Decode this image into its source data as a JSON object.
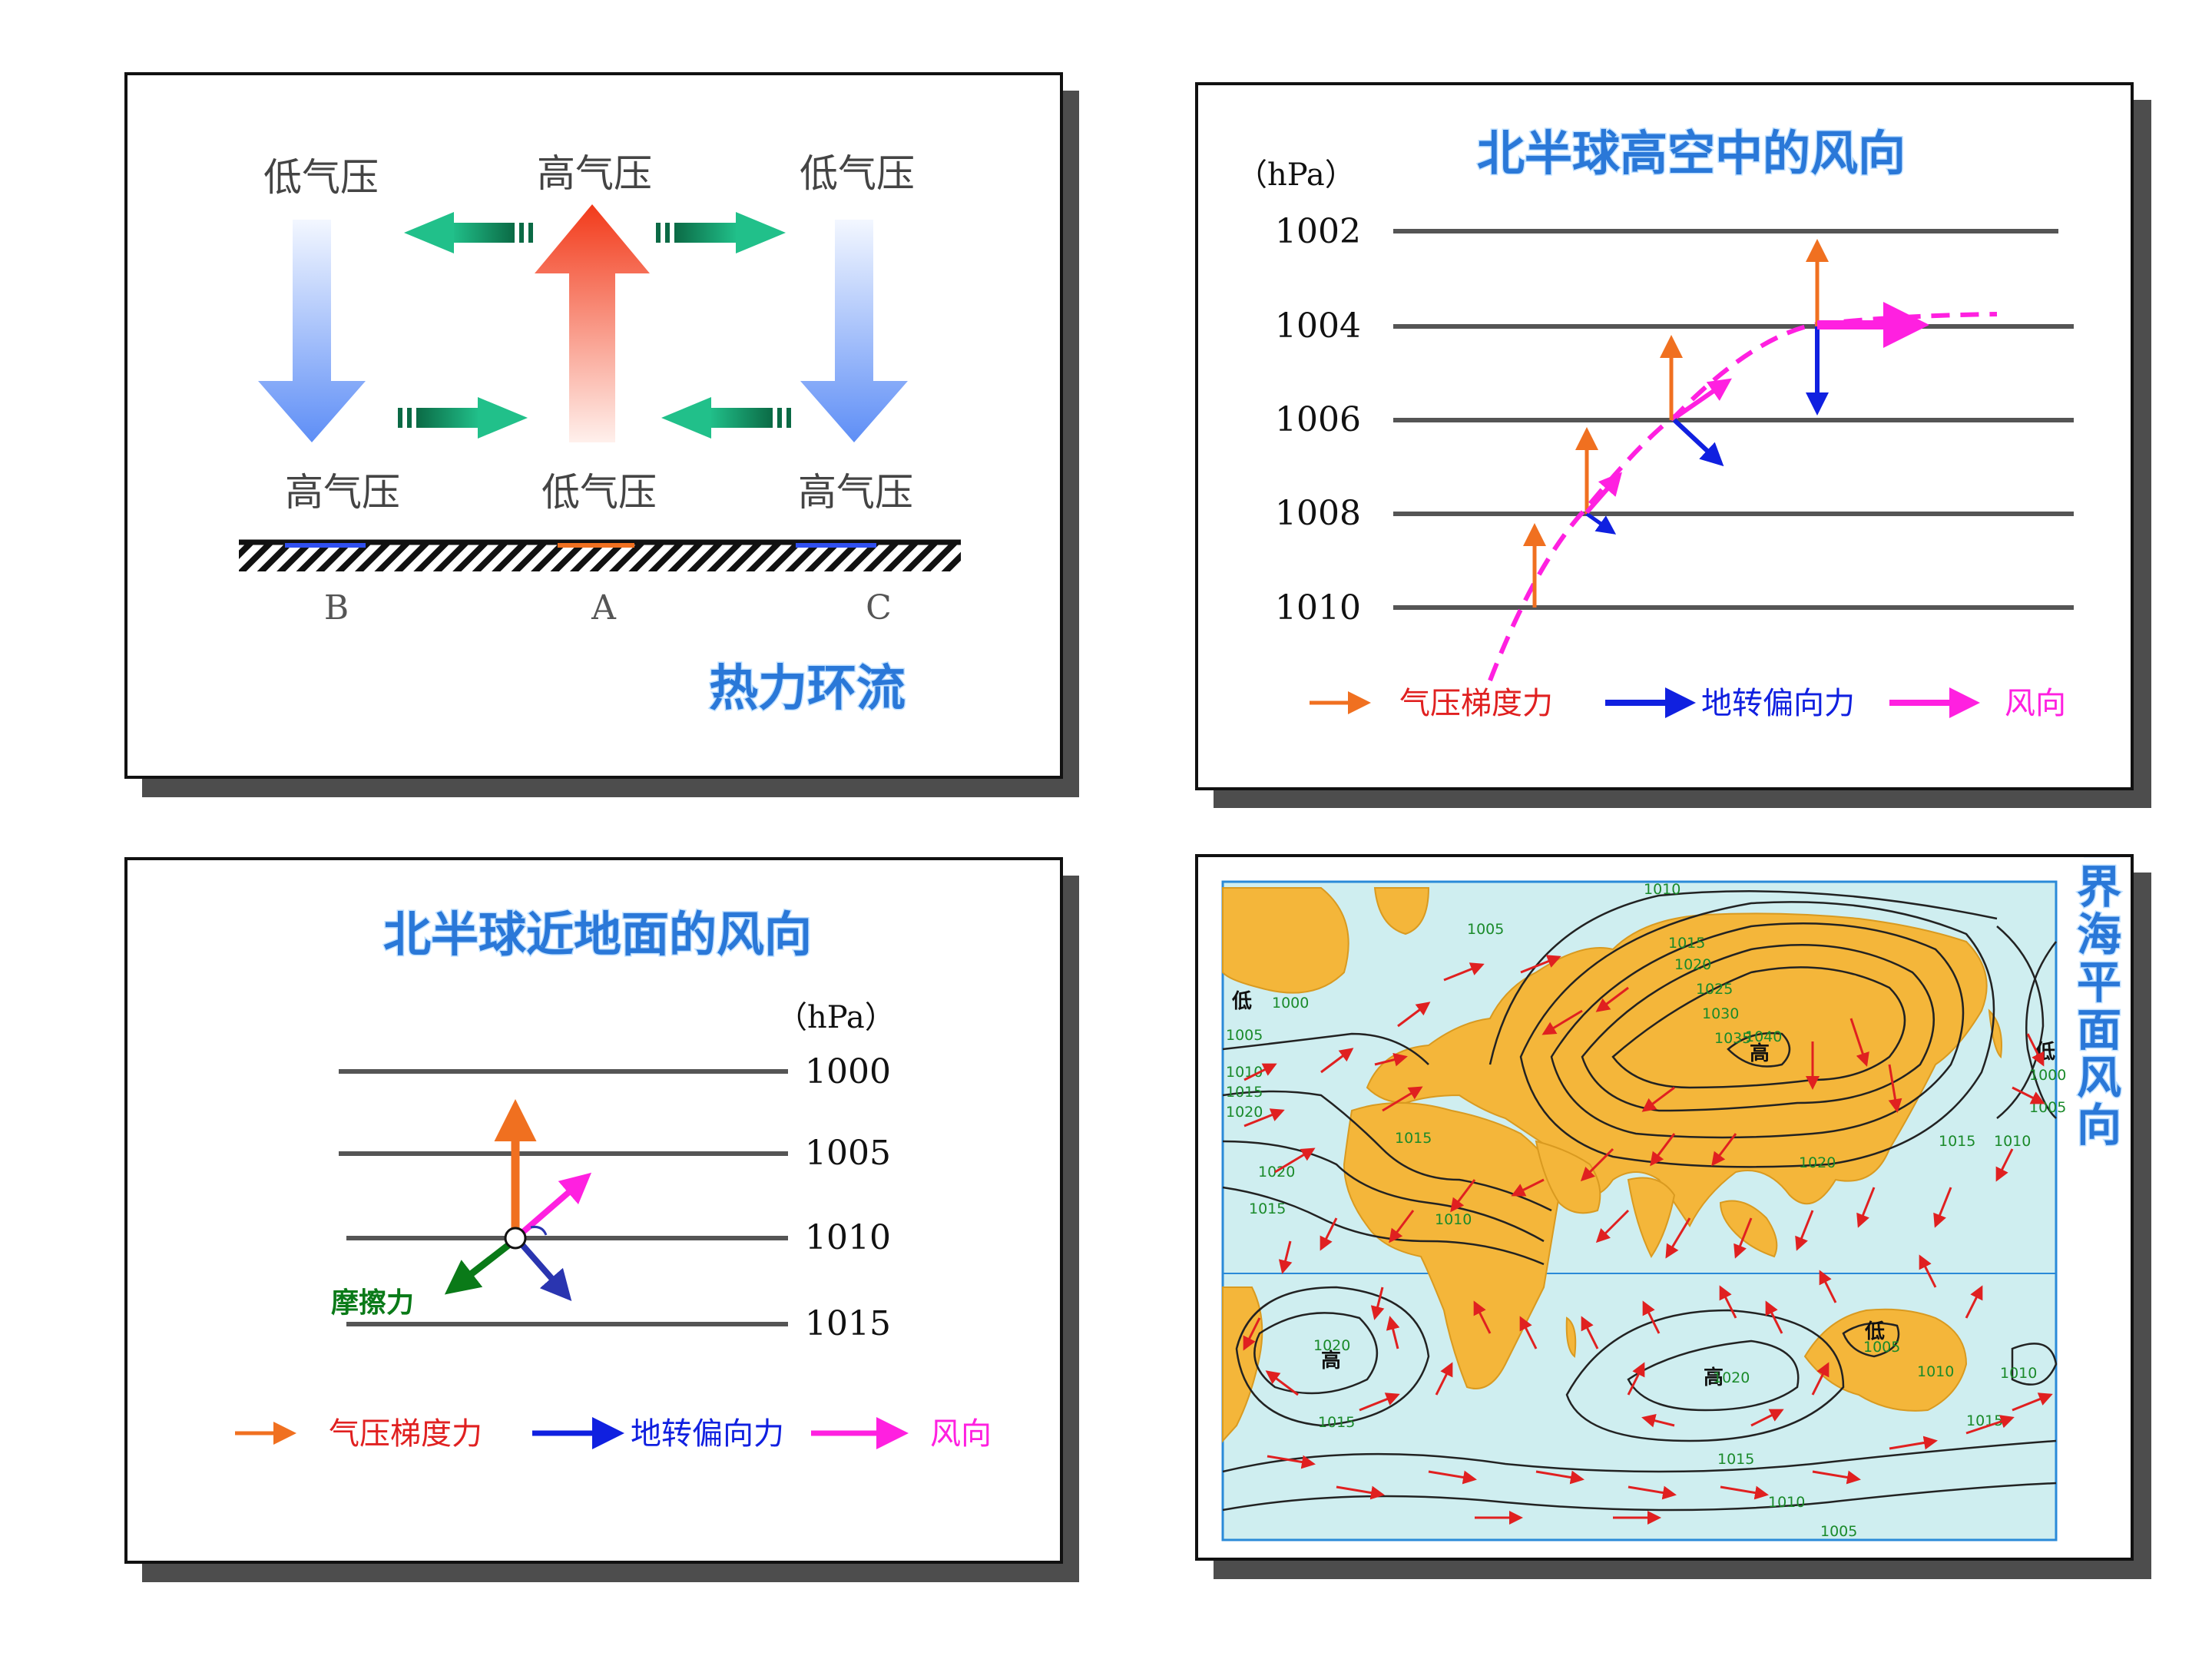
{
  "thermal": {
    "top_left": "低气压",
    "top_mid": "高气压",
    "top_right": "低气压",
    "bottom_left": "高气压",
    "bottom_mid": "低气压",
    "bottom_right": "高气压",
    "label_b": "B",
    "label_a": "A",
    "label_c": "C",
    "title": "热力环流"
  },
  "upper": {
    "title": "北半球高空中的风向",
    "unit": "（hPa）",
    "levels": [
      "1002",
      "1004",
      "1006",
      "1008",
      "1010"
    ],
    "legend": [
      "气压梯度力",
      "地转偏向力",
      "风向"
    ]
  },
  "surface": {
    "title": "北半球近地面的风向",
    "unit": "（hPa）",
    "levels": [
      "1000",
      "1005",
      "1010",
      "1015"
    ],
    "friction": "摩擦力",
    "legend": [
      "气压梯度力",
      "地转偏向力",
      "风向"
    ]
  },
  "map": {
    "title": "一月份世界海平面风向",
    "labels": {
      "high_asia": "高",
      "high_s_atlantic": "高",
      "high_s_indian": "高",
      "low_australia": "低",
      "low_n_atlantic": "低",
      "low_n_pacific": "低",
      "i1": "1010",
      "i2": "1005",
      "i3": "1015",
      "i4": "1020",
      "i5": "1025",
      "i6": "1030",
      "i7": "1035",
      "i8": "1040",
      "i9": "1000",
      "i10": "1005",
      "i11": "1010",
      "i12": "1015",
      "i13": "1020",
      "i14": "1015",
      "i15": "1020",
      "i16": "1015",
      "i17": "1010",
      "i18": "1020",
      "i19": "1015",
      "i20": "1005",
      "i21": "1010",
      "i22": "1020",
      "i23": "1015",
      "i24": "1015",
      "i25": "1010",
      "i26": "1000",
      "i27": "1005",
      "i28": "1010",
      "i29": "1015",
      "i30": "1020",
      "i31": "1010",
      "i32": "1005"
    }
  },
  "colors": {
    "pgf": "#f07020",
    "coriolis": "#1020e0",
    "wind": "#ff20e0",
    "friction": "#0a7a18",
    "title_blue": "#2a78d8",
    "green_arrow": "#0e9c6c",
    "ocean": "#cfeef0",
    "land": "#f4b63a"
  }
}
